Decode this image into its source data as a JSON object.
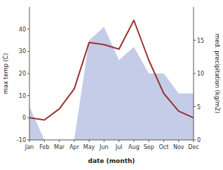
{
  "chart_data": {
    "type": "line",
    "x_label": "date (month)",
    "y_label": "max temp (C)",
    "y2_label": "med. precipitation (kg/m2)",
    "categories": [
      "Jan",
      "Feb",
      "Mar",
      "Apr",
      "May",
      "Jun",
      "Jul",
      "Aug",
      "Sep",
      "Oct",
      "Nov",
      "Dec"
    ],
    "series": [
      {
        "type": "line",
        "color": "#993333",
        "values": [
          0,
          -1,
          4,
          13,
          34,
          33,
          31,
          44,
          26,
          11,
          3,
          0
        ]
      },
      {
        "type": "area",
        "axis": "y2",
        "color": "#c5cce8",
        "values": [
          5,
          0,
          0,
          0,
          15,
          17,
          12,
          14,
          10,
          10,
          7,
          7
        ]
      }
    ],
    "ylim": [
      -10,
      50
    ],
    "yticks": [
      -10,
      0,
      10,
      20,
      30,
      40
    ],
    "y2lim": [
      0,
      20
    ],
    "y2ticks": [
      0,
      5,
      10,
      15
    ],
    "grid": false
  }
}
